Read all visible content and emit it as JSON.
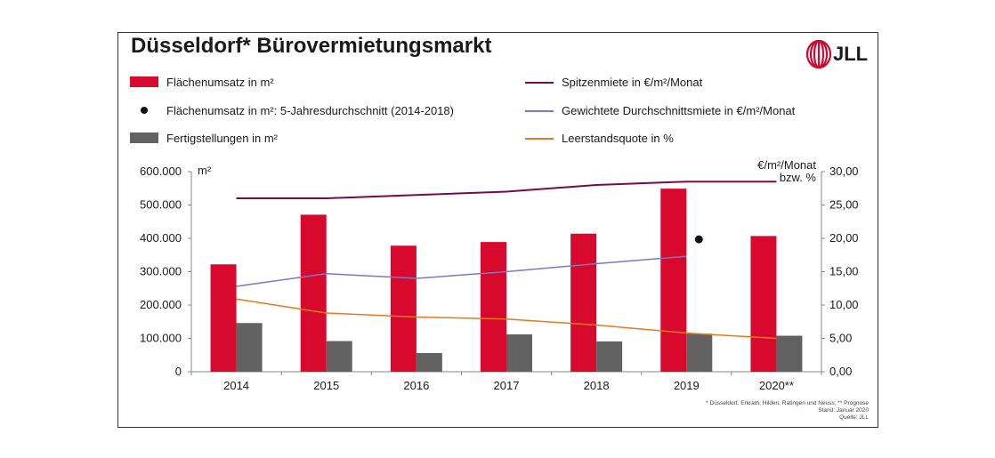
{
  "title": "Düsseldorf* Bürovermietungsmarkt",
  "logo": {
    "text": "JLL",
    "icon": "jll-logo-icon",
    "color": "#cc0a2f"
  },
  "legend": [
    {
      "label": "Flächenumsatz in m²",
      "kind": "bar",
      "color": "#d7092d"
    },
    {
      "label": "Flächenumsatz in m²: 5-Jahresdurchschnitt (2014-2018)",
      "kind": "dot",
      "color": "#111111"
    },
    {
      "label": "Fertigstellungen in m²",
      "kind": "bar",
      "color": "#626262"
    },
    {
      "label": "Spitzenmiete in €/m²/Monat",
      "kind": "line",
      "color": "#7a0a44"
    },
    {
      "label": "Gewichtete Durchschnittsmiete in €/m²/Monat",
      "kind": "line",
      "color": "#8076c4"
    },
    {
      "label": "Leerstandsquote in %",
      "kind": "line",
      "color": "#e8791e"
    }
  ],
  "chart_data": {
    "type": "bar",
    "categories": [
      "2014",
      "2015",
      "2016",
      "2017",
      "2018",
      "2019",
      "2020**"
    ],
    "left_axis": {
      "unit_label": "m²",
      "ylim": [
        0,
        600000
      ],
      "ticks": [
        "0",
        "100.000",
        "200.000",
        "300.000",
        "400.000",
        "500.000",
        "600.000"
      ]
    },
    "right_axis": {
      "unit_label_1": "€/m²/Monat",
      "unit_label_2": "bzw. %",
      "ylim": [
        0,
        30
      ],
      "ticks": [
        "0,00",
        "5,00",
        "10,00",
        "15,00",
        "20,00",
        "25,00",
        "30,00"
      ]
    },
    "bar_series": [
      {
        "name": "Flächenumsatz in m²",
        "color": "#d7092d",
        "values": [
          322000,
          471000,
          378000,
          389000,
          414000,
          549000,
          407000
        ]
      },
      {
        "name": "Fertigstellungen in m²",
        "color": "#626262",
        "values": [
          146000,
          92000,
          56000,
          112000,
          91000,
          114000,
          108000
        ]
      }
    ],
    "line_series": [
      {
        "name": "Spitzenmiete in €/m²/Monat",
        "color": "#7a0a44",
        "width": 2,
        "values": [
          26.0,
          26.0,
          26.5,
          27.0,
          28.0,
          28.5,
          28.5
        ]
      },
      {
        "name": "Gewichtete Durchschnittsmiete in €/m²/Monat",
        "color": "#8076c4",
        "width": 1.5,
        "values": [
          12.8,
          14.7,
          14.0,
          15.0,
          16.2,
          17.3,
          null
        ]
      },
      {
        "name": "Leerstandsquote in %",
        "color": "#e8791e",
        "width": 1.5,
        "values": [
          10.9,
          8.8,
          8.2,
          7.9,
          7.0,
          5.8,
          5.0
        ]
      }
    ],
    "average_point": {
      "name": "Flächenumsatz in m²: 5-Jahresdurchschnitt (2014-2018)",
      "category": "2019",
      "value": 397000,
      "color": "#111111"
    }
  },
  "footnote": {
    "line1": "* Düsseldorf, Erkrath, Hilden, Ratingen und Neuss; ** Prognose",
    "line2": "Stand: Januar 2020",
    "line3": "Quelle: JLL"
  }
}
